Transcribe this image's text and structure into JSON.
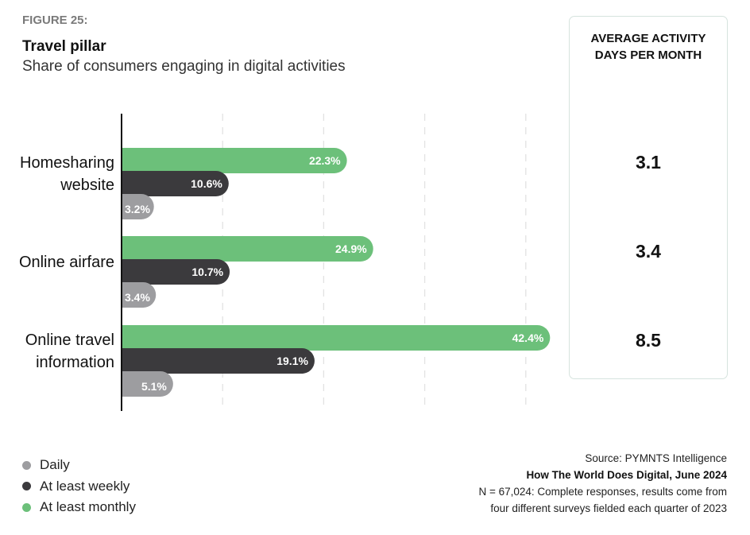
{
  "figure_label": "FIGURE 25:",
  "colors": {
    "daily": "#9d9da0",
    "weekly": "#3b3a3d",
    "monthly": "#6cc07a",
    "grid": "#e2e2e2",
    "axis": "#111111"
  },
  "side_panel": {
    "title_line1": "AVERAGE ACTIVITY",
    "title_line2": "DAYS PER MONTH",
    "values": [
      "3.1",
      "3.4",
      "8.5"
    ]
  },
  "legend": [
    {
      "label": "Daily",
      "key": "daily"
    },
    {
      "label": "At least weekly",
      "key": "weekly"
    },
    {
      "label": "At least monthly",
      "key": "monthly"
    }
  ],
  "source": {
    "line1": "Source: PYMNTS Intelligence",
    "line2": "How The World Does Digital, June 2024",
    "line3": "N = 67,024: Complete responses, results come from",
    "line4": "four different surveys fielded each quarter of 2023"
  },
  "chart_data": {
    "type": "bar",
    "orientation": "horizontal",
    "title": "Travel pillar",
    "subtitle": "Share of consumers engaging in digital activities",
    "categories": [
      {
        "line1": "Homesharing",
        "line2": "website"
      },
      {
        "line1": "Online airfare",
        "line2": ""
      },
      {
        "line1": "Online travel",
        "line2": "information"
      }
    ],
    "series": [
      {
        "name": "At least monthly",
        "key": "monthly",
        "values": [
          22.3,
          24.9,
          42.4
        ],
        "labels": [
          "22.3%",
          "24.9%",
          "42.4%"
        ]
      },
      {
        "name": "At least weekly",
        "key": "weekly",
        "values": [
          10.6,
          10.7,
          19.1
        ],
        "labels": [
          "10.6%",
          "10.7%",
          "19.1%"
        ]
      },
      {
        "name": "Daily",
        "key": "daily",
        "values": [
          3.2,
          3.4,
          5.1
        ],
        "labels": [
          "3.2%",
          "3.4%",
          "5.1%"
        ]
      }
    ],
    "xlim": [
      0,
      50
    ],
    "grid": true,
    "grid_style": "dashed vertical",
    "legend_position": "bottom-left",
    "xlabel": "",
    "ylabel": ""
  }
}
